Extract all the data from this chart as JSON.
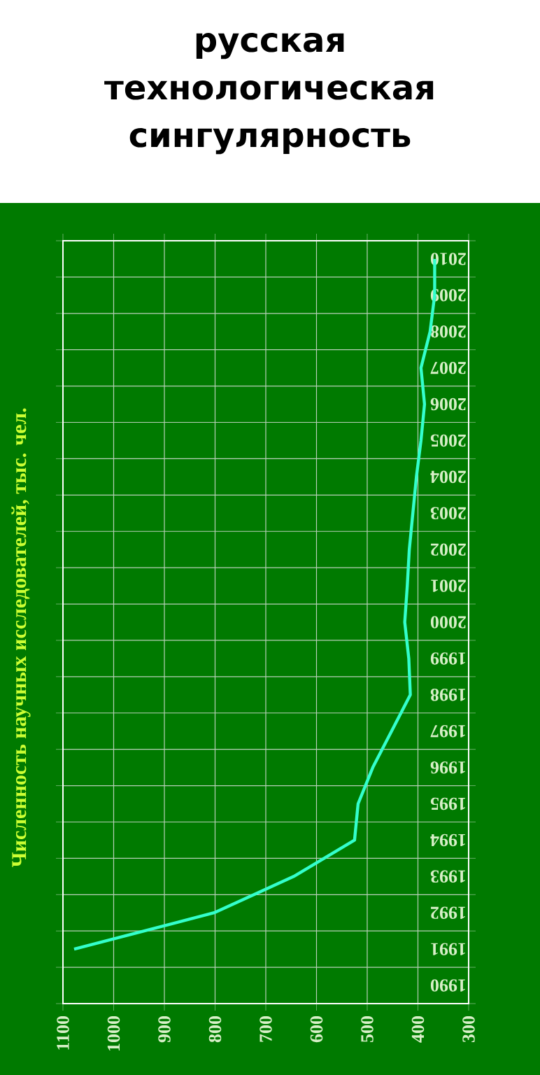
{
  "chart_data": {
    "type": "line",
    "title": "русская технологическая сингулярность",
    "ylabel": "Численность научных исследователей, тыс. чел.",
    "orientation": "horizontal",
    "categories": [
      "2010",
      "2009",
      "2008",
      "2007",
      "2006",
      "2005",
      "2004",
      "2003",
      "2002",
      "2001",
      "2000",
      "1999",
      "1998",
      "1997",
      "1996",
      "1995",
      "1994",
      "1993",
      "1992",
      "1991",
      "1990"
    ],
    "series": [
      {
        "color": "#33ffcc",
        "values": [
          367,
          367,
          376,
          394,
          387,
          394,
          403,
          410,
          417,
          421,
          426,
          418,
          415,
          452,
          489,
          518,
          525,
          645,
          802,
          1078,
          null
        ]
      }
    ],
    "xlim": [
      1100,
      300
    ],
    "xticks": [
      1100,
      1000,
      900,
      800,
      700,
      600,
      500,
      400,
      300
    ],
    "grid": true,
    "marker": "none",
    "line_style": "solid"
  }
}
